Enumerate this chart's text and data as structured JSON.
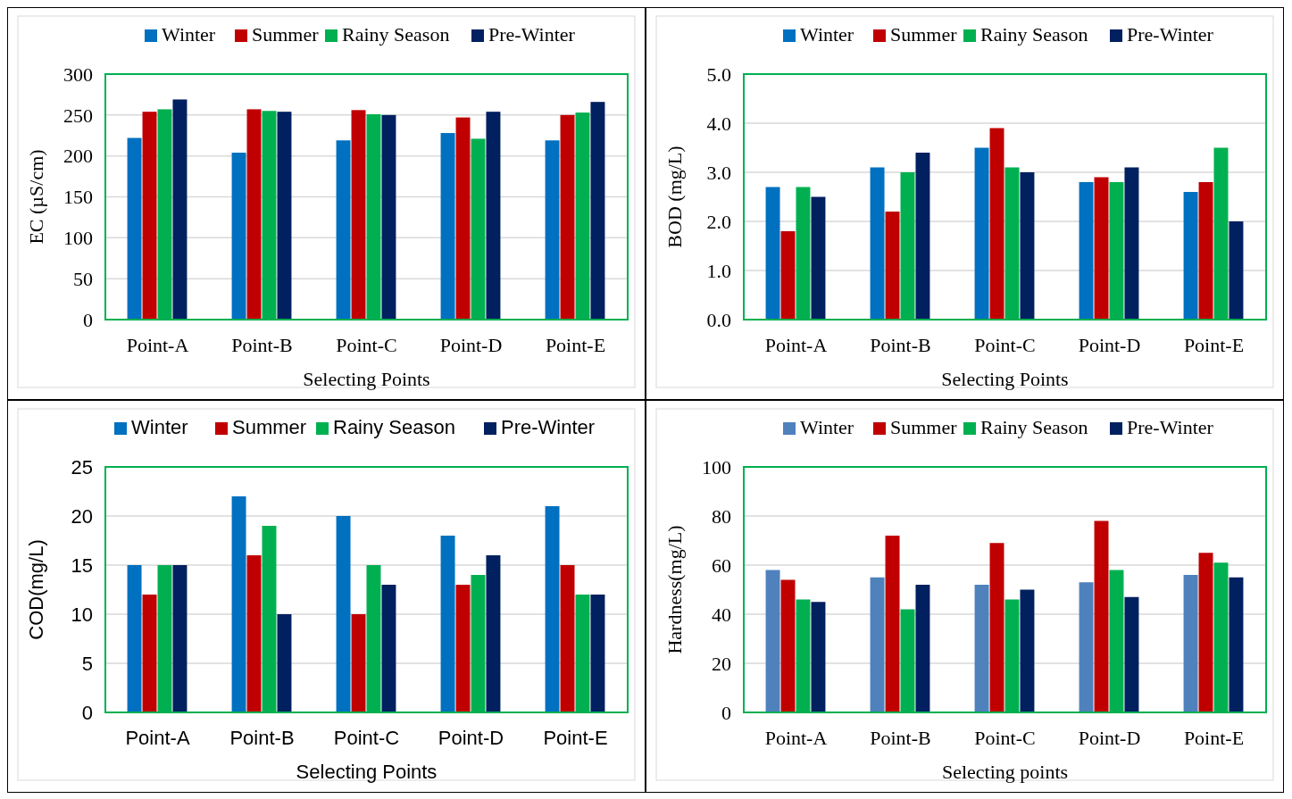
{
  "chart_data": [
    {
      "type": "bar",
      "xlabel": "Selecting Points",
      "ylabel": "EC (µS/cm)",
      "categories": [
        "Point-A",
        "Point-B",
        "Point-C",
        "Point-D",
        "Point-E"
      ],
      "ylim": [
        0,
        300
      ],
      "yticks": [
        0,
        50,
        100,
        150,
        200,
        250,
        300
      ],
      "grid": "y",
      "legend": "top",
      "series": [
        {
          "name": "Winter",
          "color": "#0070c0",
          "values": [
            222,
            204,
            219,
            228,
            219
          ]
        },
        {
          "name": "Summer",
          "color": "#c00000",
          "values": [
            254,
            257,
            256,
            247,
            250
          ]
        },
        {
          "name": "Rainy Season",
          "color": "#00b050",
          "values": [
            257,
            255,
            251,
            221,
            253
          ]
        },
        {
          "name": "Pre-Winter",
          "color": "#002060",
          "values": [
            269,
            254,
            250,
            254,
            266
          ]
        }
      ]
    },
    {
      "type": "bar",
      "xlabel": "Selecting Points",
      "ylabel": "BOD (mg/L)",
      "categories": [
        "Point-A",
        "Point-B",
        "Point-C",
        "Point-D",
        "Point-E"
      ],
      "ylim": [
        0,
        5
      ],
      "yticks": [
        {
          "value": 0,
          "label": "0.0"
        },
        {
          "value": 1,
          "label": "1.0"
        },
        {
          "value": 2,
          "label": "2.0"
        },
        {
          "value": 3,
          "label": "3.0"
        },
        {
          "value": 4,
          "label": "4.0"
        },
        {
          "value": 5,
          "label": "5.0"
        }
      ],
      "grid": "y",
      "legend": "top",
      "series": [
        {
          "name": "Winter",
          "color": "#0070c0",
          "values": [
            2.7,
            3.1,
            3.5,
            2.8,
            2.6
          ]
        },
        {
          "name": "Summer",
          "color": "#c00000",
          "values": [
            1.8,
            2.2,
            3.9,
            2.9,
            2.8
          ]
        },
        {
          "name": "Rainy Season",
          "color": "#00b050",
          "values": [
            2.7,
            3.0,
            3.1,
            2.8,
            3.5
          ]
        },
        {
          "name": "Pre-Winter",
          "color": "#002060",
          "values": [
            2.5,
            3.4,
            3.0,
            3.1,
            2.0
          ]
        }
      ]
    },
    {
      "type": "bar",
      "xlabel": "Selecting Points",
      "ylabel": "COD(mg/L)",
      "categories": [
        "Point-A",
        "Point-B",
        "Point-C",
        "Point-D",
        "Point-E"
      ],
      "ylim": [
        0,
        25
      ],
      "yticks": [
        0,
        5,
        10,
        15,
        20,
        25
      ],
      "grid": "y",
      "legend": "top",
      "series": [
        {
          "name": "Winter",
          "color": "#0070c0",
          "values": [
            15,
            22,
            20,
            18,
            21
          ]
        },
        {
          "name": "Summer",
          "color": "#c00000",
          "values": [
            12,
            16,
            10,
            13,
            15
          ]
        },
        {
          "name": "Rainy Season",
          "color": "#00b050",
          "values": [
            15,
            19,
            15,
            14,
            12
          ]
        },
        {
          "name": "Pre-Winter",
          "color": "#002060",
          "values": [
            15,
            10,
            13,
            16,
            12
          ]
        }
      ]
    },
    {
      "type": "bar",
      "xlabel": "Selecting points",
      "ylabel": "Hardness(mg/L)",
      "categories": [
        "Point-A",
        "Point-B",
        "Point-C",
        "Point-D",
        "Point-E"
      ],
      "ylim": [
        0,
        100
      ],
      "yticks": [
        0,
        20,
        40,
        60,
        80,
        100
      ],
      "grid": "y",
      "legend": "top",
      "series": [
        {
          "name": "Winter",
          "color": "#4f81bd",
          "values": [
            58,
            55,
            52,
            53,
            56
          ]
        },
        {
          "name": "Summer",
          "color": "#c00000",
          "values": [
            54,
            72,
            69,
            78,
            65
          ]
        },
        {
          "name": "Rainy Season",
          "color": "#00b050",
          "values": [
            46,
            42,
            46,
            58,
            61
          ]
        },
        {
          "name": "Pre-Winter",
          "color": "#002060",
          "values": [
            45,
            52,
            50,
            47,
            55
          ]
        }
      ]
    }
  ]
}
